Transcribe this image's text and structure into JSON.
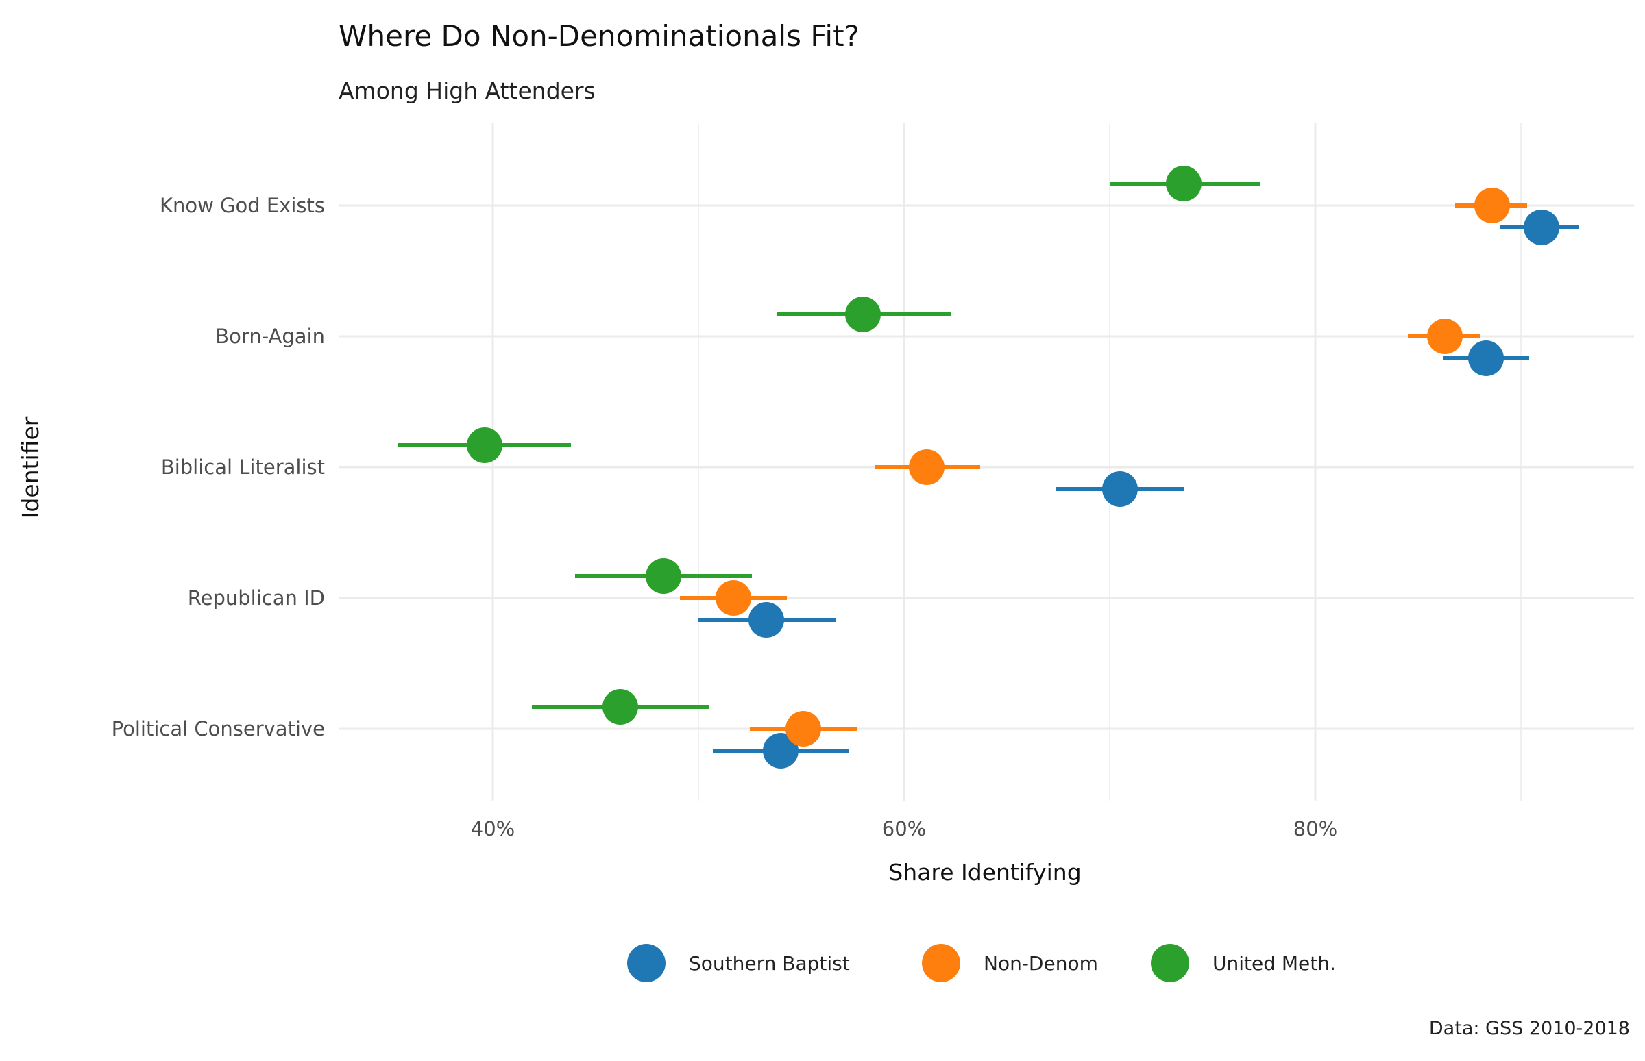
{
  "chart_data": {
    "type": "dot-errorbar",
    "title": "Where Do Non-Denominationals Fit?",
    "subtitle": "Among High Attenders",
    "xlabel": "Share Identifying",
    "ylabel": "Identifier",
    "caption": "Data: GSS 2010-2018",
    "xlim": [
      0.325,
      0.955
    ],
    "x_ticks": [
      {
        "value": 0.4,
        "label": "40%"
      },
      {
        "value": 0.6,
        "label": "60%"
      },
      {
        "value": 0.8,
        "label": "80%"
      }
    ],
    "x_minor_ticks": [
      0.5,
      0.7,
      0.9
    ],
    "categories": [
      "Know God Exists",
      "Born-Again",
      "Biblical Literalist",
      "Republican ID",
      "Political Conservative"
    ],
    "grid": true,
    "legend_position": "bottom",
    "series": [
      {
        "name": "Southern Baptist",
        "color": "#1F77B4",
        "points": [
          {
            "value": 0.91,
            "low": 0.89,
            "high": 0.928
          },
          {
            "value": 0.883,
            "low": 0.862,
            "high": 0.904
          },
          {
            "value": 0.705,
            "low": 0.674,
            "high": 0.736
          },
          {
            "value": 0.533,
            "low": 0.5,
            "high": 0.567
          },
          {
            "value": 0.54,
            "low": 0.507,
            "high": 0.573
          }
        ]
      },
      {
        "name": "Non-Denom",
        "color": "#FF7F0E",
        "points": [
          {
            "value": 0.886,
            "low": 0.868,
            "high": 0.903
          },
          {
            "value": 0.863,
            "low": 0.845,
            "high": 0.88
          },
          {
            "value": 0.611,
            "low": 0.586,
            "high": 0.637
          },
          {
            "value": 0.517,
            "low": 0.491,
            "high": 0.543
          },
          {
            "value": 0.551,
            "low": 0.525,
            "high": 0.577
          }
        ]
      },
      {
        "name": "United Meth.",
        "color": "#2CA02C",
        "points": [
          {
            "value": 0.736,
            "low": 0.7,
            "high": 0.773
          },
          {
            "value": 0.58,
            "low": 0.538,
            "high": 0.623
          },
          {
            "value": 0.396,
            "low": 0.354,
            "high": 0.438
          },
          {
            "value": 0.483,
            "low": 0.44,
            "high": 0.526
          },
          {
            "value": 0.462,
            "low": 0.419,
            "high": 0.505
          }
        ]
      }
    ]
  }
}
